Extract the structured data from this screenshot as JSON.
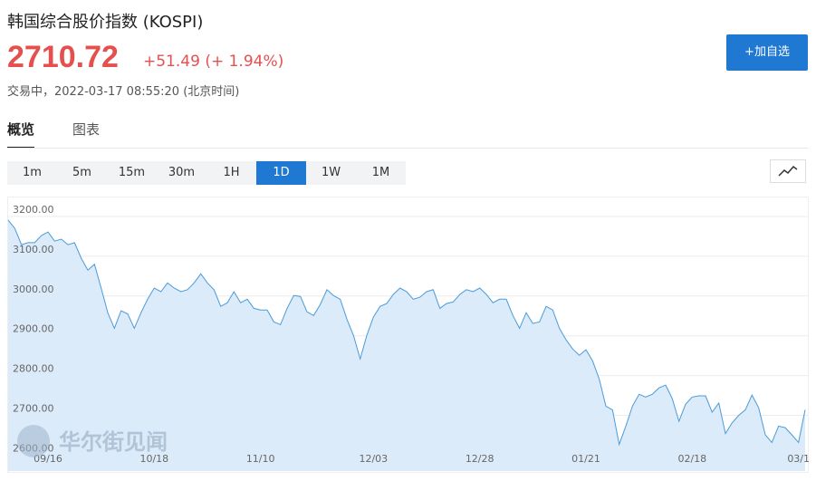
{
  "header": {
    "title": "韩国综合股价指数 (KOSPI)",
    "price": "2710.72",
    "change": "+51.49 (+ 1.94%)",
    "status": "交易中，2022-03-17 08:55:20 (北京时间)"
  },
  "watch_button": "+加自选",
  "tabs": [
    "概览",
    "图表"
  ],
  "intervals": [
    "1m",
    "5m",
    "15m",
    "30m",
    "1H",
    "1D",
    "1W",
    "1M"
  ],
  "active_interval": "1D",
  "watermark": "华尔街见闻",
  "chart_data": {
    "type": "area",
    "color": "#4a9bd8",
    "fill": "#dcebfa",
    "categories": [
      null,
      null,
      null,
      null,
      null,
      null,
      "09/16",
      null,
      null,
      null,
      null,
      null,
      null,
      null,
      null,
      null,
      null,
      null,
      null,
      null,
      null,
      null,
      "10/18",
      null,
      null,
      null,
      null,
      null,
      null,
      null,
      null,
      null,
      null,
      null,
      null,
      null,
      null,
      null,
      "11/10",
      null,
      null,
      null,
      null,
      null,
      null,
      null,
      null,
      null,
      null,
      null,
      null,
      null,
      null,
      null,
      null,
      "12/03",
      null,
      null,
      null,
      null,
      null,
      null,
      null,
      null,
      null,
      null,
      null,
      null,
      null,
      null,
      null,
      "12/28",
      null,
      null,
      null,
      null,
      null,
      null,
      null,
      null,
      null,
      null,
      null,
      null,
      null,
      null,
      null,
      "01/21",
      null,
      null,
      null,
      null,
      null,
      null,
      null,
      null,
      null,
      null,
      null,
      null,
      null,
      null,
      null,
      "02/18",
      null,
      null,
      null,
      null,
      null,
      null,
      null,
      null,
      null,
      null,
      null,
      null,
      null,
      null,
      null,
      "03/1",
      null
    ],
    "values": [
      3191,
      3170,
      3129,
      3134,
      3134,
      3152,
      3161,
      3138,
      3143,
      3129,
      3134,
      3095,
      3065,
      3080,
      3020,
      2958,
      2919,
      2963,
      2955,
      2919,
      2958,
      2992,
      3020,
      3011,
      3033,
      3020,
      3011,
      3016,
      3033,
      3056,
      3033,
      3016,
      2974,
      2983,
      3011,
      2983,
      2992,
      2969,
      2965,
      2965,
      2935,
      2928,
      2969,
      3001,
      2999,
      2960,
      2951,
      2979,
      3016,
      3001,
      2992,
      2942,
      2901,
      2842,
      2901,
      2947,
      2974,
      2981,
      3004,
      3020,
      3011,
      2992,
      2997,
      3011,
      3016,
      2969,
      2981,
      2985,
      3004,
      3016,
      3011,
      3020,
      3004,
      2983,
      2992,
      2992,
      2951,
      2919,
      2958,
      2931,
      2935,
      2974,
      2965,
      2919,
      2890,
      2867,
      2851,
      2865,
      2837,
      2791,
      2723,
      2714,
      2627,
      2673,
      2723,
      2753,
      2746,
      2753,
      2769,
      2776,
      2742,
      2685,
      2728,
      2746,
      2749,
      2749,
      2708,
      2731,
      2654,
      2681,
      2700,
      2714,
      2751,
      2719,
      2651,
      2632,
      2673,
      2669,
      2651,
      2632,
      2714
    ],
    "ylim": [
      2560,
      3250
    ],
    "yticks": [
      {
        "value": 2600,
        "label": "2600.00"
      },
      {
        "value": 2700,
        "label": "2700.00"
      },
      {
        "value": 2800,
        "label": "2800.00"
      },
      {
        "value": 2900,
        "label": "2900.00"
      },
      {
        "value": 3000,
        "label": "3000.00"
      },
      {
        "value": 3100,
        "label": "3100.00"
      },
      {
        "value": 3200,
        "label": "3200.00"
      }
    ],
    "grid": true
  }
}
